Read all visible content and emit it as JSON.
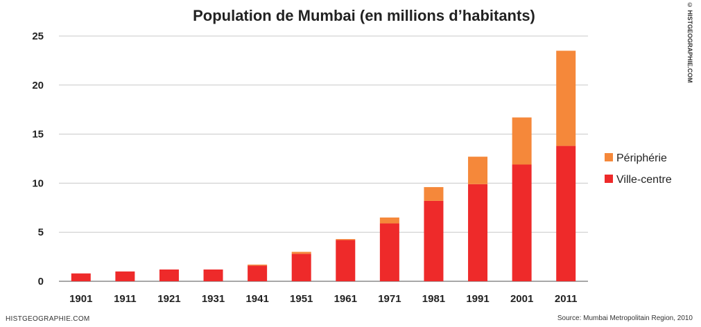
{
  "chart_data": {
    "type": "bar",
    "stacked": true,
    "title": "Population de Mumbai (en millions d’habitants)",
    "categories": [
      "1901",
      "1911",
      "1921",
      "1931",
      "1941",
      "1951",
      "1961",
      "1971",
      "1981",
      "1991",
      "2001",
      "2011"
    ],
    "series": [
      {
        "name": "Ville-centre",
        "color": "#ee2a2a",
        "values": [
          0.8,
          1.0,
          1.2,
          1.2,
          1.6,
          2.8,
          4.2,
          5.9,
          8.2,
          9.9,
          11.9,
          13.8
        ]
      },
      {
        "name": "Périphérie",
        "color": "#f5883a",
        "values": [
          0,
          0,
          0,
          0,
          0.1,
          0.2,
          0.1,
          0.6,
          1.4,
          2.8,
          4.8,
          9.7
        ]
      }
    ],
    "legend_order": [
      "Périphérie",
      "Ville-centre"
    ],
    "ylim": [
      0,
      25
    ],
    "yticks": [
      0,
      5,
      10,
      15,
      20,
      25
    ],
    "grid": true,
    "legend_position": "right"
  },
  "footer": {
    "left": "HISTGEOGRAPHIE.COM",
    "right": "Source: Mumbai Metropolitain Region, 2010",
    "copyright": "© HISTGEOGRAPHIE.COM"
  }
}
